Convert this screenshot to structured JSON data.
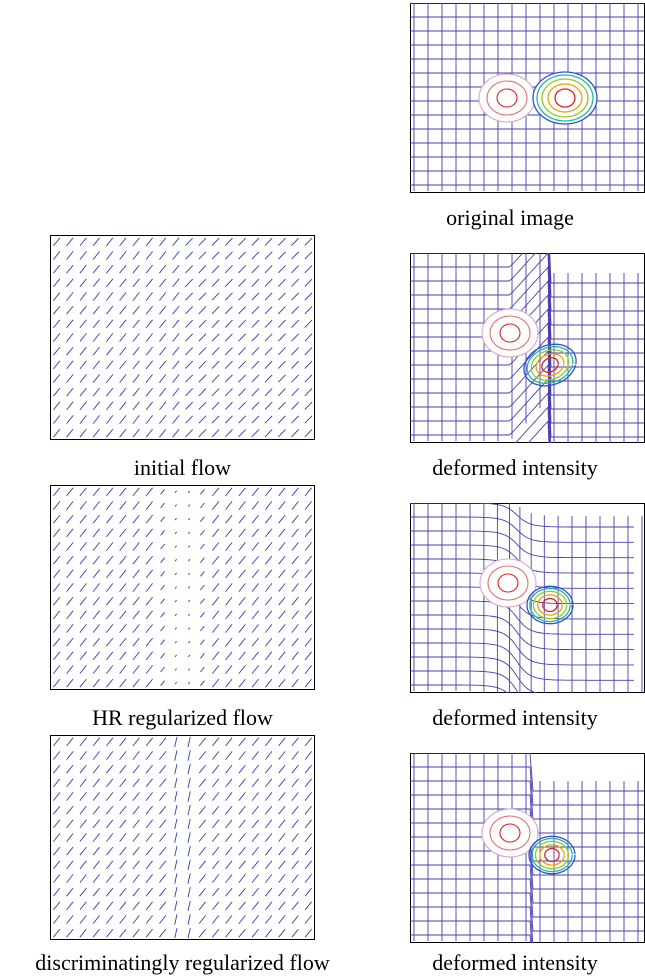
{
  "figure": {
    "original": {
      "caption": "original image"
    },
    "flows": [
      {
        "caption": "initial flow",
        "kind": "initial"
      },
      {
        "caption": "HR regularized flow",
        "kind": "hr"
      },
      {
        "caption": "discriminatingly regularized flow",
        "kind": "disc"
      }
    ],
    "deformed": [
      {
        "caption": "deformed intensity",
        "kind": "initial"
      },
      {
        "caption": "deformed intensity",
        "kind": "hr"
      },
      {
        "caption": "deformed intensity",
        "kind": "disc"
      }
    ]
  },
  "colors": {
    "arrow": "#2a3fb8",
    "grid": "#4a3fb0",
    "contours": [
      "#e02020",
      "#e07070",
      "#d9a8c8",
      "#f0a000",
      "#8fcc2a",
      "#1fb8a8",
      "#3050d0"
    ]
  }
}
